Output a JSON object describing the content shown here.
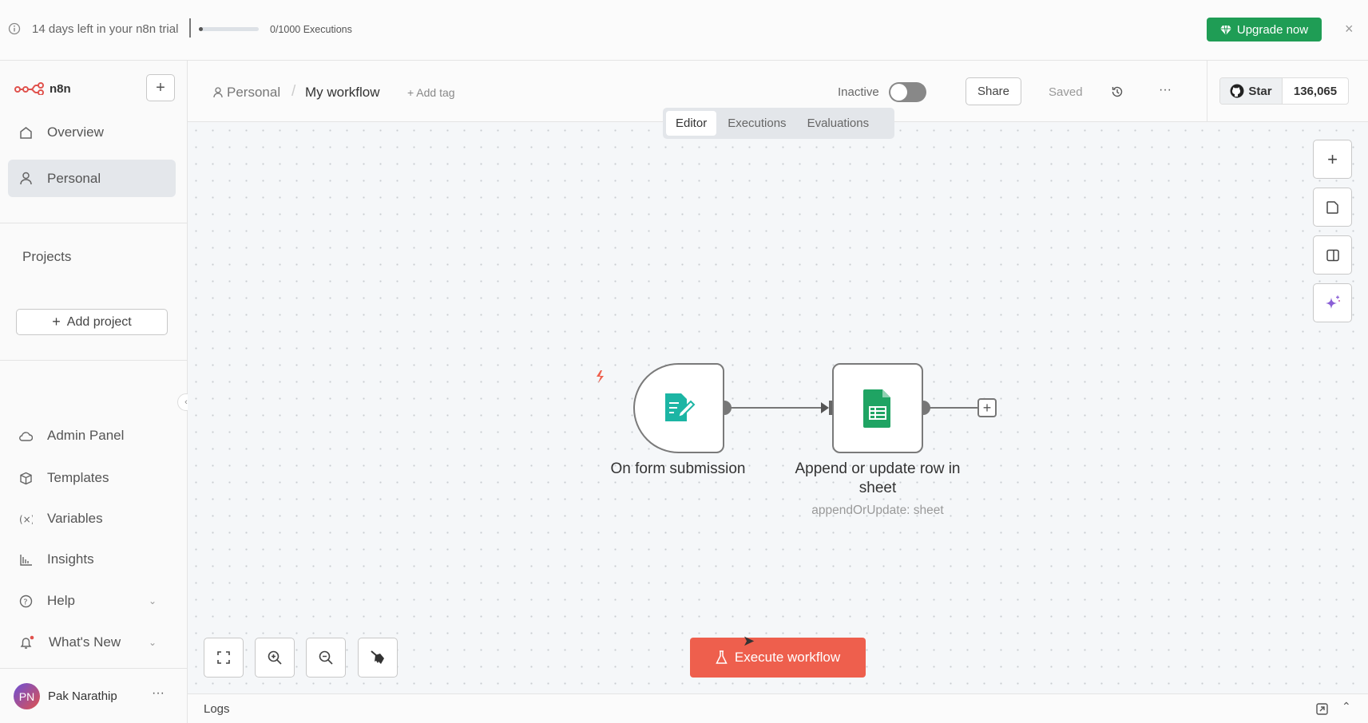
{
  "banner": {
    "trial_text": "14 days left in your n8n trial",
    "executions": "0/1000 Executions",
    "executions_used": 0,
    "executions_limit": 1000,
    "upgrade_label": "Upgrade now",
    "accent": "#1f9d55"
  },
  "sidebar": {
    "brand": "n8n",
    "items": [
      {
        "label": "Overview"
      },
      {
        "label": "Personal"
      }
    ],
    "projects_heading": "Projects",
    "add_project": "Add project",
    "bottom_items": [
      {
        "label": "Admin Panel"
      },
      {
        "label": "Templates"
      },
      {
        "label": "Variables"
      },
      {
        "label": "Insights"
      },
      {
        "label": "Help"
      },
      {
        "label": "What's New"
      }
    ],
    "user": {
      "initials": "PN",
      "name": "Pak Narathip"
    }
  },
  "header": {
    "breadcrumb_project": "Personal",
    "workflow_name": "My workflow",
    "add_tag": "+ Add tag",
    "status_label": "Inactive",
    "active": false,
    "share": "Share",
    "saved": "Saved",
    "star_label": "Star",
    "star_count": "136,065"
  },
  "tabs": [
    {
      "label": "Editor",
      "active": true
    },
    {
      "label": "Executions"
    },
    {
      "label": "Evaluations"
    }
  ],
  "nodes": [
    {
      "title": "On form submission",
      "subtitle": ""
    },
    {
      "title": "Append or update row in sheet",
      "subtitle": "appendOrUpdate: sheet"
    }
  ],
  "execute_label": "Execute workflow",
  "execute_color": "#ee5f4d",
  "logs_label": "Logs"
}
